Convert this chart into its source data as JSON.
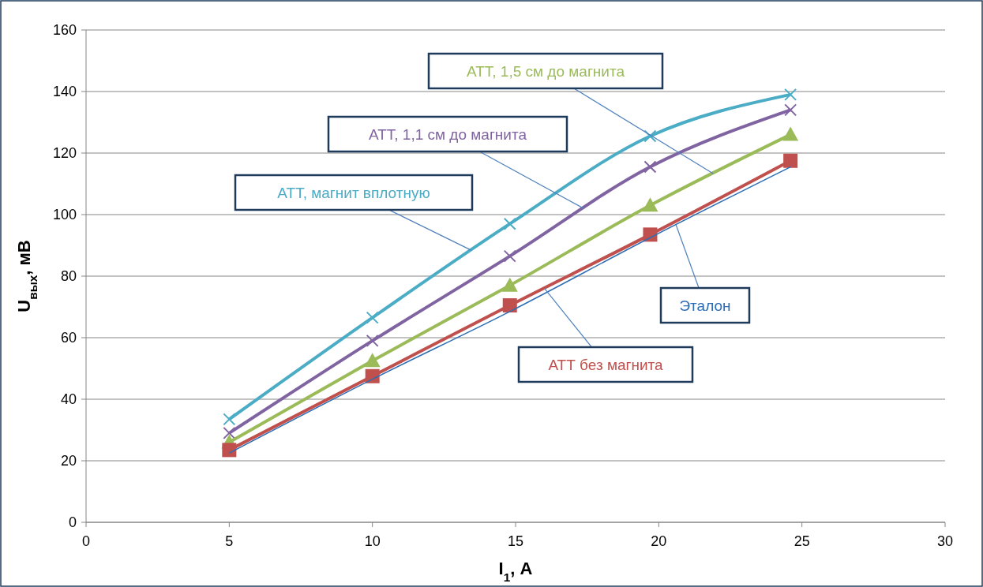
{
  "chart_data": {
    "type": "line",
    "xlabel": "I$_{1}$, А",
    "ylabel": "U$_{вых}$, мВ",
    "xlim": [
      0,
      30
    ],
    "xticks": [
      0,
      5,
      10,
      15,
      20,
      25,
      30
    ],
    "ylim": [
      0,
      160
    ],
    "yticks": [
      0,
      20,
      40,
      60,
      80,
      100,
      120,
      140,
      160
    ],
    "grid": "y",
    "legend": false,
    "x": [
      5,
      10,
      14.8,
      19.7,
      24.6
    ],
    "series": [
      {
        "name": "Эталон",
        "color": "#2e6db4",
        "values": [
          22.5,
          46.5,
          68.5,
          92.5,
          115.5
        ],
        "marker": "none"
      },
      {
        "name": "АТТ без магнита",
        "color": "#c0504d",
        "values": [
          23.5,
          47.5,
          70.5,
          93.5,
          117.5
        ],
        "marker": "square"
      },
      {
        "name": "АТТ, 1,5 см до магнита",
        "color": "#9bbb59",
        "values": [
          26,
          52.5,
          77,
          103,
          126
        ],
        "marker": "triangle"
      },
      {
        "name": "АТТ, 1,1 см до магнита",
        "color": "#8064a2",
        "values": [
          29,
          59,
          86.5,
          115.5,
          134
        ],
        "marker": "cross"
      },
      {
        "name": "АТТ, магнит вплотную",
        "color": "#4bacc6",
        "values": [
          33.5,
          66.5,
          97,
          125.5,
          139
        ],
        "marker": "cross"
      }
    ]
  }
}
